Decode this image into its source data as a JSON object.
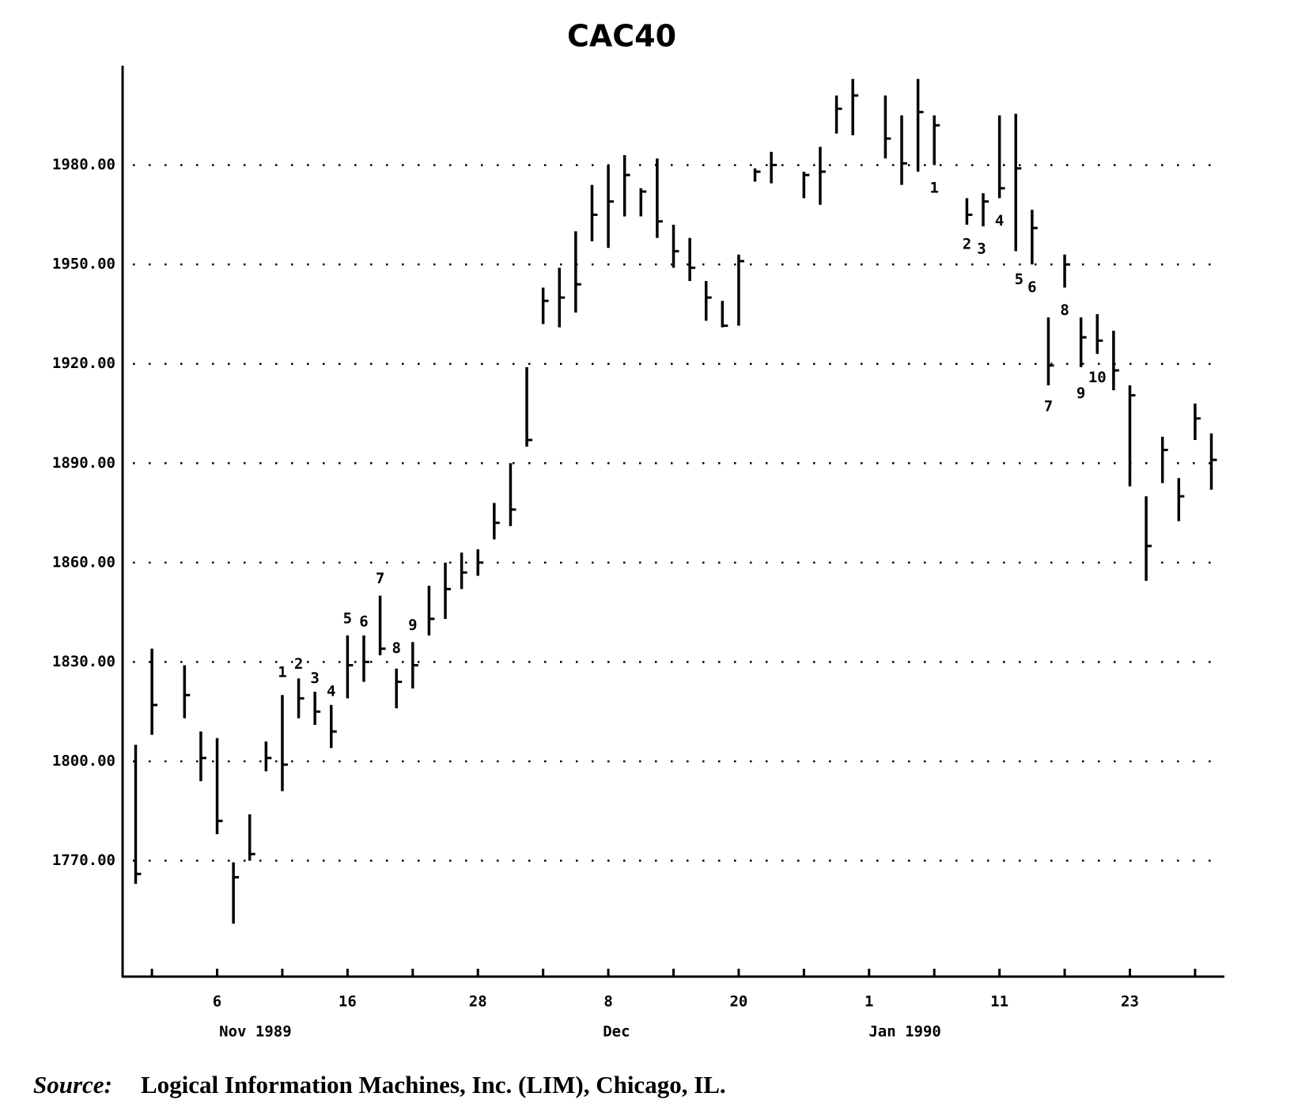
{
  "chart_data": {
    "type": "ohlc",
    "title": "CAC40",
    "x": [
      -1,
      0,
      2,
      3,
      4,
      5,
      6,
      7,
      8,
      9,
      10,
      11,
      12,
      13,
      14,
      15,
      16,
      17,
      18,
      19,
      20,
      21,
      22,
      23,
      24,
      25,
      26,
      27,
      28,
      29,
      30,
      31,
      32,
      33,
      34,
      35,
      36,
      37,
      38,
      40,
      41,
      42,
      43,
      45,
      46,
      47,
      48,
      50,
      51,
      52,
      53,
      54,
      55,
      56,
      57,
      58,
      59,
      60,
      61,
      62,
      63,
      64,
      65
    ],
    "high": [
      1805,
      1834,
      1829,
      1809,
      1807,
      1769.5,
      1784,
      1806,
      1820,
      1825,
      1821,
      1817,
      1838,
      1838,
      1850,
      1828,
      1836,
      1853,
      1860,
      1863,
      1864,
      1878,
      1890,
      1919,
      1943,
      1949,
      1960,
      1974,
      1980,
      1983,
      1973,
      1982,
      1962,
      1958,
      1945,
      1939,
      1953,
      1979,
      1984,
      1978,
      1985.5,
      2001,
      2006,
      2001,
      1995,
      2006,
      1995,
      1970,
      1971.5,
      1995,
      1995.5,
      1966.5,
      1934,
      1953,
      1934,
      1935,
      1930,
      1913.5,
      1880,
      1898,
      1885.5,
      1908,
      1899
    ],
    "low": [
      1763,
      1808,
      1813,
      1794,
      1778,
      1751,
      1770,
      1797,
      1791,
      1813,
      1811,
      1804,
      1819,
      1824,
      1832,
      1816,
      1822,
      1838,
      1843,
      1852,
      1856,
      1867,
      1871,
      1895,
      1932,
      1931,
      1935.5,
      1957,
      1955,
      1964.5,
      1964.5,
      1958,
      1949,
      1945,
      1933,
      1931,
      1931.5,
      1975,
      1974.5,
      1970,
      1968,
      1989.5,
      1989,
      1982,
      1974,
      1978,
      1980,
      1962,
      1961.5,
      1970,
      1954,
      1950,
      1913.5,
      1943,
      1919,
      1923,
      1912,
      1883,
      1854.5,
      1884,
      1872.5,
      1897,
      1882
    ],
    "close": [
      1766,
      1817,
      1820,
      1801,
      1782,
      1765,
      1772,
      1801,
      1799,
      1819,
      1815,
      1809,
      1829,
      1830,
      1834,
      1824,
      1829,
      1843,
      1852,
      1857,
      1860,
      1872,
      1876,
      1897,
      1939,
      1940,
      1944,
      1965,
      1969,
      1977,
      1972,
      1963,
      1954,
      1949,
      1940,
      1931.5,
      1951,
      1978,
      1980,
      1977,
      1978,
      1997,
      2001,
      1988,
      1980.5,
      1996,
      1992,
      1965,
      1969,
      1973,
      1979,
      1961,
      1919.5,
      1950,
      1928,
      1927,
      1918,
      1910.5,
      1865,
      1894,
      1880,
      1903.5,
      1891
    ],
    "color": "#000000",
    "xlim": [
      -1.8,
      65.8
    ],
    "ylim": [
      1735,
      2010
    ],
    "yticks": [
      {
        "value": 1770,
        "label": "1770.00"
      },
      {
        "value": 1800,
        "label": "1800.00"
      },
      {
        "value": 1830,
        "label": "1830.00"
      },
      {
        "value": 1860,
        "label": "1860.00"
      },
      {
        "value": 1890,
        "label": "1890.00"
      },
      {
        "value": 1920,
        "label": "1920.00"
      },
      {
        "value": 1950,
        "label": "1950.00"
      },
      {
        "value": 1980,
        "label": "1980.00"
      }
    ],
    "xticks": [
      {
        "value": 4,
        "label": "6"
      },
      {
        "value": 12,
        "label": "16"
      },
      {
        "value": 20,
        "label": "28"
      },
      {
        "value": 28,
        "label": "8"
      },
      {
        "value": 36,
        "label": "20"
      },
      {
        "value": 44,
        "label": "1"
      },
      {
        "value": 52,
        "label": "11"
      },
      {
        "value": 60,
        "label": "23"
      }
    ],
    "minor_xticks": [
      0,
      8,
      16,
      24,
      32,
      40,
      48,
      56,
      64
    ],
    "month_labels": [
      {
        "value": 6.35,
        "label": "Nov 1989"
      },
      {
        "value": 28.5,
        "label": "Dec"
      },
      {
        "value": 46.2,
        "label": "Jan 1990"
      }
    ],
    "grid": true,
    "annotations": [
      {
        "text": "1",
        "x": 8,
        "y": 1826.7
      },
      {
        "text": "2",
        "x": 9,
        "y": 1829.2
      },
      {
        "text": "3",
        "x": 10,
        "y": 1825
      },
      {
        "text": "4",
        "x": 11,
        "y": 1821
      },
      {
        "text": "5",
        "x": 12,
        "y": 1843
      },
      {
        "text": "6",
        "x": 13,
        "y": 1842
      },
      {
        "text": "7",
        "x": 14,
        "y": 1855
      },
      {
        "text": "8",
        "x": 15,
        "y": 1834
      },
      {
        "text": "9",
        "x": 16,
        "y": 1841
      },
      {
        "text": "1",
        "x": 48,
        "y": 1973
      },
      {
        "text": "2",
        "x": 50,
        "y": 1956
      },
      {
        "text": "3",
        "x": 50.9,
        "y": 1954.6
      },
      {
        "text": "4",
        "x": 52,
        "y": 1963
      },
      {
        "text": "5",
        "x": 53.2,
        "y": 1945.4
      },
      {
        "text": "6",
        "x": 54,
        "y": 1943
      },
      {
        "text": "7",
        "x": 55,
        "y": 1907
      },
      {
        "text": "8",
        "x": 56,
        "y": 1936
      },
      {
        "text": "9",
        "x": 57,
        "y": 1911
      },
      {
        "text": "10",
        "x": 58,
        "y": 1915.7
      }
    ],
    "source": {
      "label": "Source:",
      "text": "Logical Information Machines, Inc. (LIM), Chicago, IL."
    }
  }
}
